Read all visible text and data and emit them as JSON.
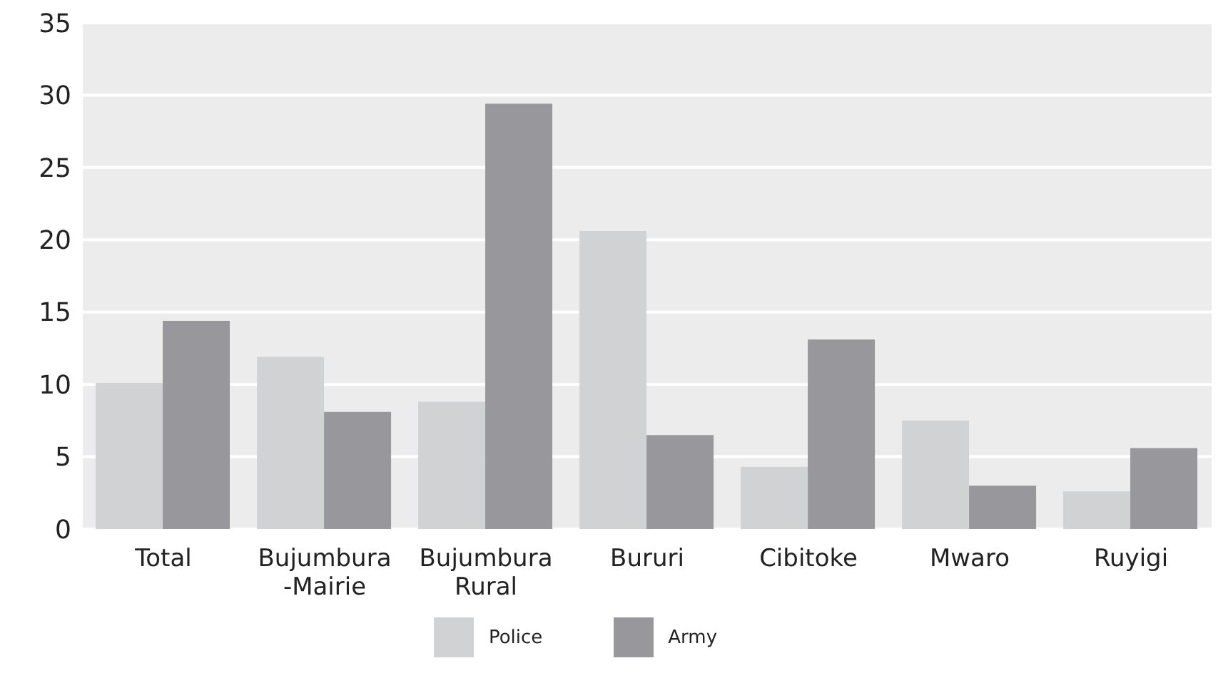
{
  "chart_data": {
    "type": "bar",
    "categories": [
      "Total",
      "Bujumbura\n-Mairie",
      "Bujumbura\nRural",
      "Bururi",
      "Cibitoke",
      "Mwaro",
      "Ruyigi"
    ],
    "series": [
      {
        "name": "Police",
        "color": "#d1d2d4",
        "values": [
          10.1,
          11.9,
          8.8,
          20.6,
          4.3,
          7.5,
          2.6
        ]
      },
      {
        "name": "Army",
        "color": "#98979b",
        "values": [
          14.4,
          8.1,
          29.4,
          6.5,
          13.1,
          3.0,
          5.6
        ]
      }
    ],
    "ylim": [
      0,
      35
    ],
    "yticks": [
      0,
      5,
      10,
      15,
      20,
      25,
      30,
      35
    ],
    "grid": "y",
    "legend": "bottom"
  }
}
